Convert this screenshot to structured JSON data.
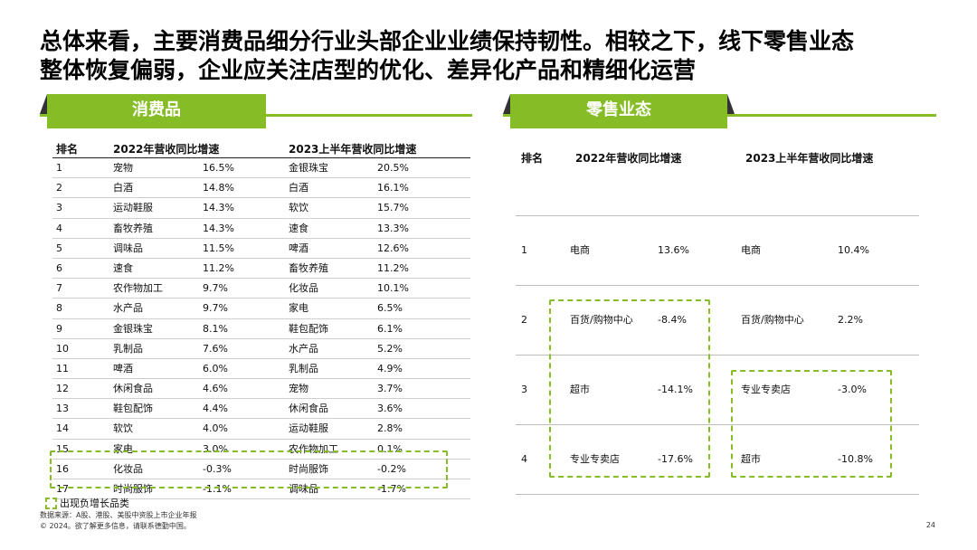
{
  "title": {
    "line1": "总体来看，主要消费品细分行业头部企业业绩保持韧性。相较之下，线下零售业态",
    "line2": "整体恢复偏弱，企业应关注店型的优化、差异化产品和精细化运营"
  },
  "left_section": {
    "label": "消费品",
    "headers": {
      "rank": "排名",
      "col1": "2022年营收同比增速",
      "col2": "2023上半年营收同比增速"
    },
    "rows": [
      {
        "rank": "1",
        "i1": "宠物",
        "v1": "16.5%",
        "i2": "金银珠宝",
        "v2": "20.5%"
      },
      {
        "rank": "2",
        "i1": "白酒",
        "v1": "14.8%",
        "i2": "白酒",
        "v2": "16.1%"
      },
      {
        "rank": "3",
        "i1": "运动鞋服",
        "v1": "14.3%",
        "i2": "软饮",
        "v2": "15.7%"
      },
      {
        "rank": "4",
        "i1": "畜牧养殖",
        "v1": "14.3%",
        "i2": "速食",
        "v2": "13.3%"
      },
      {
        "rank": "5",
        "i1": "调味品",
        "v1": "11.5%",
        "i2": "啤酒",
        "v2": "12.6%"
      },
      {
        "rank": "6",
        "i1": "速食",
        "v1": "11.2%",
        "i2": "畜牧养殖",
        "v2": "11.2%"
      },
      {
        "rank": "7",
        "i1": "农作物加工",
        "v1": "9.7%",
        "i2": "化妆品",
        "v2": "10.1%"
      },
      {
        "rank": "8",
        "i1": "水产品",
        "v1": "9.7%",
        "i2": "家电",
        "v2": "6.5%"
      },
      {
        "rank": "9",
        "i1": "金银珠宝",
        "v1": "8.1%",
        "i2": "鞋包配饰",
        "v2": "6.1%"
      },
      {
        "rank": "10",
        "i1": "乳制品",
        "v1": "7.6%",
        "i2": "水产品",
        "v2": "5.2%"
      },
      {
        "rank": "11",
        "i1": "啤酒",
        "v1": "6.0%",
        "i2": "乳制品",
        "v2": "4.9%"
      },
      {
        "rank": "12",
        "i1": "休闲食品",
        "v1": "4.6%",
        "i2": "宠物",
        "v2": "3.7%"
      },
      {
        "rank": "13",
        "i1": "鞋包配饰",
        "v1": "4.4%",
        "i2": "休闲食品",
        "v2": "3.6%"
      },
      {
        "rank": "14",
        "i1": "软饮",
        "v1": "4.0%",
        "i2": "运动鞋服",
        "v2": "2.8%"
      },
      {
        "rank": "15",
        "i1": "家电",
        "v1": "3.0%",
        "i2": "农作物加工",
        "v2": "0.1%"
      },
      {
        "rank": "16",
        "i1": "化妆品",
        "v1": "-0.3%",
        "i2": "时尚服饰",
        "v2": "-0.2%"
      },
      {
        "rank": "17",
        "i1": "时尚服饰",
        "v1": "-1.1%",
        "i2": "调味品",
        "v2": "-1.7%"
      }
    ]
  },
  "right_section": {
    "label": "零售业态",
    "headers": {
      "rank": "排名",
      "col1": "2022年营收同比增速",
      "col2": "2023上半年营收同比增速"
    },
    "rows": [
      {
        "rank": "1",
        "i1": "电商",
        "v1": "13.6%",
        "i2": "电商",
        "v2": "10.4%"
      },
      {
        "rank": "2",
        "i1": "百货/购物中心",
        "v1": "-8.4%",
        "i2": "百货/购物中心",
        "v2": "2.2%"
      },
      {
        "rank": "3",
        "i1": "超市",
        "v1": "-14.1%",
        "i2": "专业专卖店",
        "v2": "-3.0%"
      },
      {
        "rank": "4",
        "i1": "专业专卖店",
        "v1": "-17.6%",
        "i2": "超市",
        "v2": "-10.8%"
      }
    ]
  },
  "legend": {
    "label": "出现负增长品类"
  },
  "footer": {
    "source": "数据来源：A股、港股、美股中资股上市企业年报",
    "copyright": "© 2024。欲了解更多信息，请联系德勤中国。",
    "page_number": "24"
  },
  "colors": {
    "accent": "#86bc25"
  }
}
